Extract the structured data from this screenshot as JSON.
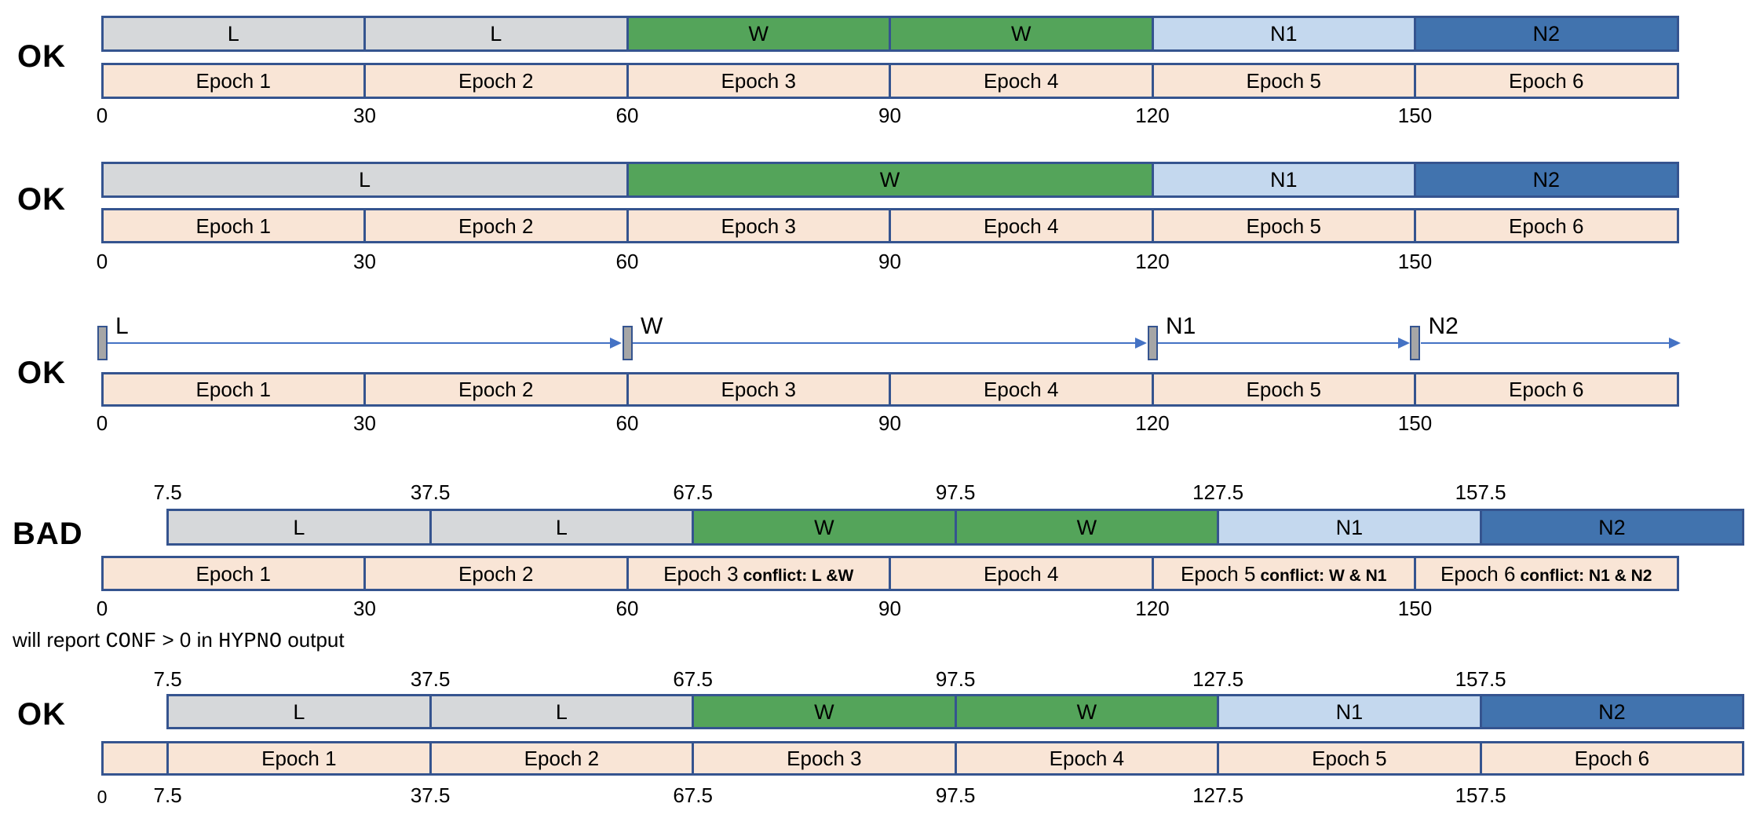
{
  "palette": {
    "border": "#35548F",
    "stage_gray": "#D6D8DA",
    "stage_green": "#54A45A",
    "stage_n1": "#C4D8EE",
    "stage_n2": "#4173AE",
    "epoch_fill": "#F9E5D6",
    "marker_fill": "#A6A6A6",
    "arrow": "#4472C4",
    "text": "#000000"
  },
  "time_axis": {
    "units_per_epoch": 30,
    "total_units": 180,
    "shift_units": 7.5
  },
  "rows": [
    {
      "verdict": "OK",
      "stage_type": "bar",
      "stage_segments": [
        {
          "label": "L",
          "start": 0,
          "end": 30,
          "color": "gray"
        },
        {
          "label": "L",
          "start": 30,
          "end": 60,
          "color": "gray"
        },
        {
          "label": "W",
          "start": 60,
          "end": 90,
          "color": "green"
        },
        {
          "label": "W",
          "start": 90,
          "end": 120,
          "color": "green"
        },
        {
          "label": "N1",
          "start": 120,
          "end": 150,
          "color": "n1"
        },
        {
          "label": "N2",
          "start": 150,
          "end": 180,
          "color": "n2"
        }
      ],
      "epochs": [
        {
          "label": "Epoch 1",
          "start": 0,
          "end": 30
        },
        {
          "label": "Epoch 2",
          "start": 30,
          "end": 60
        },
        {
          "label": "Epoch 3",
          "start": 60,
          "end": 90
        },
        {
          "label": "Epoch 4",
          "start": 90,
          "end": 120
        },
        {
          "label": "Epoch 5",
          "start": 120,
          "end": 150
        },
        {
          "label": "Epoch 6",
          "start": 150,
          "end": 180
        }
      ],
      "top_ticks": [],
      "axis_ticks": [
        {
          "label": "0",
          "t": 0
        },
        {
          "label": "30",
          "t": 30
        },
        {
          "label": "60",
          "t": 60
        },
        {
          "label": "90",
          "t": 90
        },
        {
          "label": "120",
          "t": 120
        },
        {
          "label": "150",
          "t": 150
        }
      ]
    },
    {
      "verdict": "OK",
      "stage_type": "bar",
      "stage_segments": [
        {
          "label": "L",
          "start": 0,
          "end": 60,
          "color": "gray"
        },
        {
          "label": "W",
          "start": 60,
          "end": 120,
          "color": "green"
        },
        {
          "label": "N1",
          "start": 120,
          "end": 150,
          "color": "n1"
        },
        {
          "label": "N2",
          "start": 150,
          "end": 180,
          "color": "n2"
        }
      ],
      "epochs": [
        {
          "label": "Epoch 1",
          "start": 0,
          "end": 30
        },
        {
          "label": "Epoch 2",
          "start": 30,
          "end": 60
        },
        {
          "label": "Epoch 3",
          "start": 60,
          "end": 90
        },
        {
          "label": "Epoch 4",
          "start": 90,
          "end": 120
        },
        {
          "label": "Epoch 5",
          "start": 120,
          "end": 150
        },
        {
          "label": "Epoch 6",
          "start": 150,
          "end": 180
        }
      ],
      "top_ticks": [],
      "axis_ticks": [
        {
          "label": "0",
          "t": 0
        },
        {
          "label": "30",
          "t": 30
        },
        {
          "label": "60",
          "t": 60
        },
        {
          "label": "90",
          "t": 90
        },
        {
          "label": "120",
          "t": 120
        },
        {
          "label": "150",
          "t": 150
        }
      ]
    },
    {
      "verdict": "OK",
      "stage_type": "markers",
      "markers": [
        {
          "label": "L",
          "t": 0
        },
        {
          "label": "W",
          "t": 60
        },
        {
          "label": "N1",
          "t": 120
        },
        {
          "label": "N2",
          "t": 150
        }
      ],
      "arrow_tail_end": 181,
      "epochs": [
        {
          "label": "Epoch 1",
          "start": 0,
          "end": 30
        },
        {
          "label": "Epoch 2",
          "start": 30,
          "end": 60
        },
        {
          "label": "Epoch 3",
          "start": 60,
          "end": 90
        },
        {
          "label": "Epoch 4",
          "start": 90,
          "end": 120
        },
        {
          "label": "Epoch 5",
          "start": 120,
          "end": 150
        },
        {
          "label": "Epoch 6",
          "start": 150,
          "end": 180
        }
      ],
      "top_ticks": [],
      "axis_ticks": [
        {
          "label": "0",
          "t": 0
        },
        {
          "label": "30",
          "t": 30
        },
        {
          "label": "60",
          "t": 60
        },
        {
          "label": "90",
          "t": 90
        },
        {
          "label": "120",
          "t": 120
        },
        {
          "label": "150",
          "t": 150
        }
      ]
    },
    {
      "verdict": "BAD",
      "stage_type": "bar",
      "stage_segments": [
        {
          "label": "L",
          "start": 7.5,
          "end": 37.5,
          "color": "gray"
        },
        {
          "label": "L",
          "start": 37.5,
          "end": 67.5,
          "color": "gray"
        },
        {
          "label": "W",
          "start": 67.5,
          "end": 97.5,
          "color": "green"
        },
        {
          "label": "W",
          "start": 97.5,
          "end": 127.5,
          "color": "green"
        },
        {
          "label": "N1",
          "start": 127.5,
          "end": 157.5,
          "color": "n1"
        },
        {
          "label": "N2",
          "start": 157.5,
          "end": 187.5,
          "color": "n2"
        }
      ],
      "epochs": [
        {
          "label": "Epoch 1",
          "start": 0,
          "end": 30
        },
        {
          "label": "Epoch 2",
          "start": 30,
          "end": 60
        },
        {
          "label": "Epoch 3",
          "start": 60,
          "end": 90,
          "conflict": "conflict: L &W"
        },
        {
          "label": "Epoch 4",
          "start": 90,
          "end": 120
        },
        {
          "label": "Epoch 5",
          "start": 120,
          "end": 150,
          "conflict": "conflict: W & N1"
        },
        {
          "label": "Epoch 6",
          "start": 150,
          "end": 180,
          "conflict": "conflict: N1 & N2"
        }
      ],
      "top_ticks": [
        {
          "label": "7.5",
          "t": 7.5
        },
        {
          "label": "37.5",
          "t": 37.5
        },
        {
          "label": "67.5",
          "t": 67.5
        },
        {
          "label": "97.5",
          "t": 97.5
        },
        {
          "label": "127.5",
          "t": 127.5
        },
        {
          "label": "157.5",
          "t": 157.5
        }
      ],
      "axis_ticks": [
        {
          "label": "0",
          "t": 0
        },
        {
          "label": "30",
          "t": 30
        },
        {
          "label": "60",
          "t": 60
        },
        {
          "label": "90",
          "t": 90
        },
        {
          "label": "120",
          "t": 120
        },
        {
          "label": "150",
          "t": 150
        }
      ]
    },
    {
      "verdict": "OK",
      "stage_type": "bar",
      "stage_segments": [
        {
          "label": "L",
          "start": 7.5,
          "end": 37.5,
          "color": "gray"
        },
        {
          "label": "L",
          "start": 37.5,
          "end": 67.5,
          "color": "gray"
        },
        {
          "label": "W",
          "start": 67.5,
          "end": 97.5,
          "color": "green"
        },
        {
          "label": "W",
          "start": 97.5,
          "end": 127.5,
          "color": "green"
        },
        {
          "label": "N1",
          "start": 127.5,
          "end": 157.5,
          "color": "n1"
        },
        {
          "label": "N2",
          "start": 157.5,
          "end": 187.5,
          "color": "n2"
        }
      ],
      "epochs": [
        {
          "label": "",
          "start": 0,
          "end": 7.5
        },
        {
          "label": "Epoch 1",
          "start": 7.5,
          "end": 37.5
        },
        {
          "label": "Epoch 2",
          "start": 37.5,
          "end": 67.5
        },
        {
          "label": "Epoch 3",
          "start": 67.5,
          "end": 97.5
        },
        {
          "label": "Epoch 4",
          "start": 97.5,
          "end": 127.5
        },
        {
          "label": "Epoch 5",
          "start": 127.5,
          "end": 157.5
        },
        {
          "label": "Epoch 6",
          "start": 157.5,
          "end": 187.5
        }
      ],
      "top_ticks": [
        {
          "label": "7.5",
          "t": 7.5
        },
        {
          "label": "37.5",
          "t": 37.5
        },
        {
          "label": "67.5",
          "t": 67.5
        },
        {
          "label": "97.5",
          "t": 97.5
        },
        {
          "label": "127.5",
          "t": 127.5
        },
        {
          "label": "157.5",
          "t": 157.5
        }
      ],
      "axis_ticks": [
        {
          "label": "0",
          "t": 0,
          "small": true
        },
        {
          "label": "7.5",
          "t": 7.5
        },
        {
          "label": "37.5",
          "t": 37.5
        },
        {
          "label": "67.5",
          "t": 67.5
        },
        {
          "label": "97.5",
          "t": 97.5
        },
        {
          "label": "127.5",
          "t": 127.5
        },
        {
          "label": "157.5",
          "t": 157.5
        }
      ]
    }
  ],
  "note": {
    "parts": [
      {
        "text": "will report ",
        "mono": false
      },
      {
        "text": "CONF",
        "mono": true
      },
      {
        "text": " > 0 in ",
        "mono": false
      },
      {
        "text": "HYPNO",
        "mono": true
      },
      {
        "text": " output",
        "mono": false
      }
    ]
  }
}
